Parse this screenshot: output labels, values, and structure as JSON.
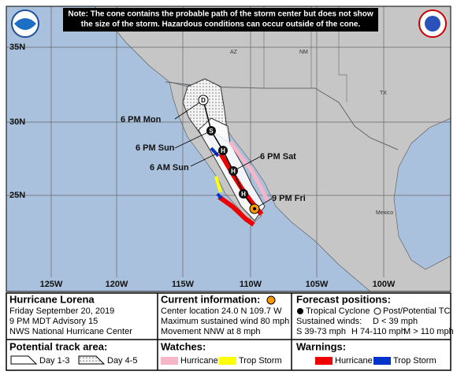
{
  "note": [
    "Note: The cone contains the probable path of the storm center but does not show",
    "the size of the storm. Hazardous conditions can occur outside of the cone."
  ],
  "map": {
    "lat_labels": [
      "35N",
      "30N",
      "25N"
    ],
    "lon_labels": [
      "125W",
      "120W",
      "115W",
      "110W",
      "105W",
      "100W"
    ],
    "region_labels": [
      "AZ",
      "NM",
      "TX",
      "Mexico"
    ],
    "point_symbols": [
      "D",
      "S",
      "H",
      "H",
      "H"
    ],
    "time_labels": [
      "6 PM Mon",
      "6 PM Sun",
      "6 AM Sun",
      "6 PM Sat",
      "9 PM Fri"
    ]
  },
  "legend": {
    "storm": {
      "name": "Hurricane Lorena",
      "date": "Friday September 20, 2019",
      "advisory": "9 PM MDT Advisory 15",
      "source": "NWS National Hurricane Center"
    },
    "current": {
      "title": "Current information:",
      "location": "Center location 24.0 N 109.7 W",
      "wind": "Maximum sustained wind 80 mph",
      "movement": "Movement NNW at 8 mph"
    },
    "forecast": {
      "title": "Forecast positions:",
      "tropical": "Tropical Cyclone",
      "post": "Post/Potential TC",
      "winds_title": "Sustained winds:",
      "d": "D < 39 mph",
      "s": "S 39-73 mph",
      "h": "H 74-110 mph",
      "m": "M > 110 mph"
    },
    "track": {
      "title": "Potential track area:",
      "day13": "Day 1-3",
      "day45": "Day 4-5"
    },
    "watches": {
      "title": "Watches:",
      "hurricane": "Hurricane",
      "trop": "Trop Storm"
    },
    "warnings": {
      "title": "Warnings:",
      "hurricane": "Hurricane",
      "trop": "Trop Storm"
    }
  }
}
